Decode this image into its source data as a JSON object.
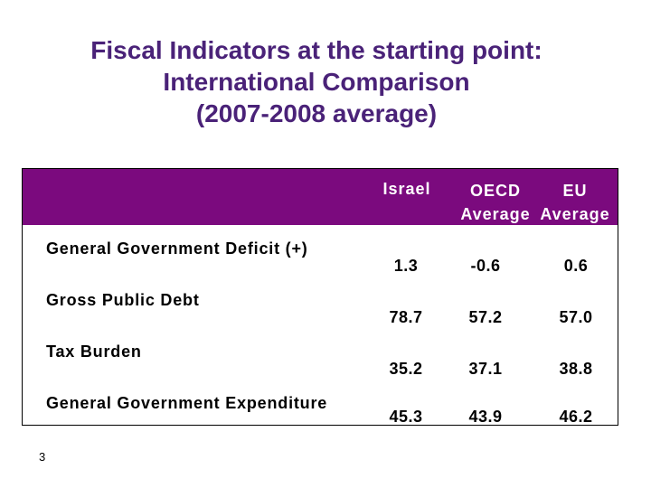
{
  "title": {
    "line1": "Fiscal Indicators at the starting point:",
    "line2": "International Comparison",
    "line3": "(2007-2008 average)"
  },
  "table": {
    "columns": [
      {
        "line1": "",
        "line2": "Israel"
      },
      {
        "line1": "OECD",
        "line2": "Average"
      },
      {
        "line1": "EU",
        "line2": "Average"
      }
    ],
    "rows": [
      {
        "label": "General Government Deficit (+)",
        "values": [
          "1.3",
          "-0.6",
          "0.6"
        ]
      },
      {
        "label": "Gross Public Debt",
        "values": [
          "78.7",
          "57.2",
          "57.0"
        ]
      },
      {
        "label": "Tax Burden",
        "values": [
          "35.2",
          "37.1",
          "38.8"
        ]
      },
      {
        "label": "General Government Expenditure",
        "values": [
          "45.3",
          "43.9",
          "46.2"
        ]
      }
    ]
  },
  "page_number": "3",
  "colors": {
    "header_bg": "#7b0a7e",
    "title": "#4a2278"
  }
}
